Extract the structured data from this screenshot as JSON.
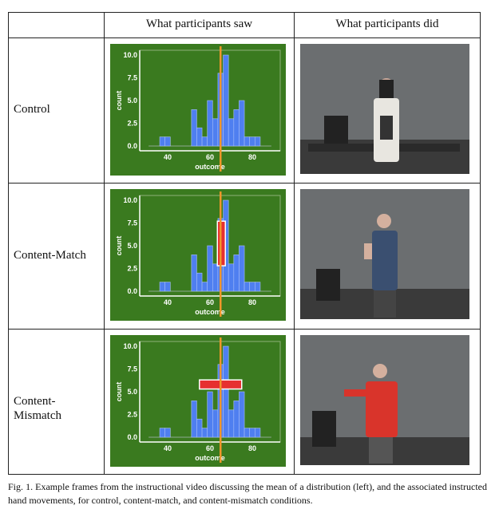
{
  "table": {
    "headers": [
      "What participants saw",
      "What participants did"
    ],
    "rows": [
      {
        "condition": "Control"
      },
      {
        "condition": "Content-Match"
      },
      {
        "condition": "Content-\nMismatch"
      }
    ]
  },
  "chart_data": {
    "type": "bar",
    "xlabel": "outcome",
    "ylabel": "count",
    "x_ticks": [
      "40",
      "60",
      "80"
    ],
    "y_ticks": [
      "0.0",
      "2.5",
      "5.0",
      "7.5",
      "10.0"
    ],
    "xlim": [
      30,
      90
    ],
    "ylim": [
      0,
      10.5
    ],
    "bin_centers": [
      37.5,
      40,
      52.5,
      55,
      57.5,
      60,
      62.5,
      65,
      67.5,
      70,
      72.5,
      75,
      77.5,
      80,
      82.5
    ],
    "values": [
      1,
      1,
      4,
      2,
      1,
      5,
      3,
      8,
      10,
      3,
      4,
      5,
      1,
      1,
      1
    ],
    "mean_line": 65,
    "colors": {
      "background": "#3a7a1f",
      "bars": "#4f7ff0",
      "mean": "#f0962a",
      "marker": "#e63030"
    }
  },
  "caption": "Fig. 1.  Example frames from the instructional video discussing the mean of a distribution (left), and the associated instructed hand movements, for control, content-match, and content-mismatch conditions."
}
